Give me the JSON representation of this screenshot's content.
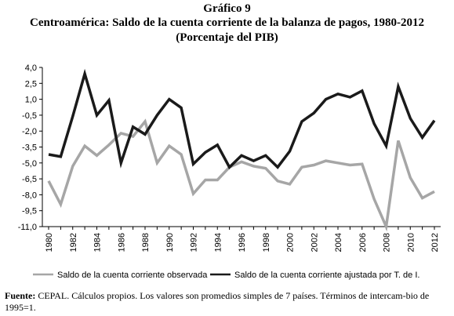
{
  "figure": {
    "number": "Gráfico 9",
    "title": "Centroamérica: Saldo de la cuenta corriente de la balanza de pagos, 1980-2012",
    "subtitle": "(Porcentaje del PIB)"
  },
  "note": {
    "label": "Fuente:",
    "text": " CEPAL. Cálculos propios. Los valores son promedios simples de 7 países. Términos de intercam-bio de 1995=1."
  },
  "chart_data": {
    "type": "line",
    "x": [
      1980,
      1981,
      1982,
      1983,
      1984,
      1985,
      1986,
      1987,
      1988,
      1989,
      1990,
      1991,
      1992,
      1993,
      1994,
      1995,
      1996,
      1997,
      1998,
      1999,
      2000,
      2001,
      2002,
      2003,
      2004,
      2005,
      2006,
      2007,
      2008,
      2009,
      2010,
      2011,
      2012
    ],
    "x_tick_labels": [
      "1980",
      "1982",
      "1984",
      "1986",
      "1988",
      "1990",
      "1992",
      "1994",
      "1996",
      "1998",
      "2000",
      "2002",
      "2004",
      "2006",
      "2008",
      "2010",
      "2012"
    ],
    "y_tick_labels": [
      "4,0",
      "2,5",
      "1,0",
      "-0,5",
      "-2,0",
      "-3,5",
      "-5,0",
      "-6,5",
      "-8,0",
      "-9,5",
      "-11,0"
    ],
    "ylim": [
      -11.0,
      4.0
    ],
    "grid": false,
    "legend_position": "bottom",
    "series": [
      {
        "name": "Saldo de la cuenta corriente observada",
        "color": "#a6a6a6",
        "values": [
          -6.7,
          -8.9,
          -5.3,
          -3.4,
          -4.3,
          -3.3,
          -2.2,
          -2.5,
          -1.1,
          -5.0,
          -3.4,
          -4.2,
          -7.9,
          -6.6,
          -6.6,
          -5.4,
          -4.9,
          -5.3,
          -5.5,
          -6.7,
          -7.0,
          -5.4,
          -5.2,
          -4.8,
          -5.0,
          -5.2,
          -5.1,
          -8.4,
          -11.0,
          -2.9,
          -6.4,
          -8.3,
          -7.7
        ],
        "width": 3.5
      },
      {
        "name": "Saldo de la cuenta corriente ajustada por T. de I.",
        "color": "#1a1a1a",
        "values": [
          -4.2,
          -4.4,
          -0.6,
          3.4,
          -0.5,
          0.9,
          -5.0,
          -1.6,
          -2.3,
          -0.5,
          1.0,
          0.2,
          -5.1,
          -4.0,
          -3.3,
          -5.4,
          -4.3,
          -4.8,
          -4.3,
          -5.4,
          -3.9,
          -1.1,
          -0.3,
          1.0,
          1.5,
          1.2,
          1.8,
          -1.3,
          -3.4,
          2.2,
          -0.8,
          -2.6,
          -1.0
        ],
        "width": 3.5
      }
    ]
  }
}
